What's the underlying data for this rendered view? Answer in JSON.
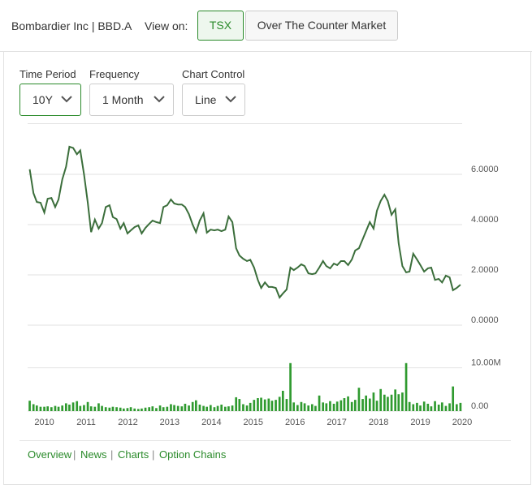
{
  "header": {
    "title": "Bombardier Inc | BBD.A",
    "view_on": "View on:",
    "buttons": [
      "TSX",
      "Over The Counter Market"
    ]
  },
  "controls": [
    {
      "label": "Time Period",
      "value": "10Y"
    },
    {
      "label": "Frequency",
      "value": "1 Month"
    },
    {
      "label": "Chart Control",
      "value": "Line"
    }
  ],
  "links": [
    "Overview",
    "News",
    "Charts",
    "Option Chains"
  ],
  "chart_data": {
    "type": "line",
    "x": [
      2009.65,
      2009.74,
      2009.82,
      2009.91,
      2010.0,
      2010.08,
      2010.17,
      2010.26,
      2010.34,
      2010.43,
      2010.52,
      2010.6,
      2010.69,
      2010.78,
      2010.86,
      2010.95,
      2011.04,
      2011.12,
      2011.21,
      2011.3,
      2011.38,
      2011.47,
      2011.56,
      2011.64,
      2011.73,
      2011.82,
      2011.9,
      2011.99,
      2012.07,
      2012.16,
      2012.25,
      2012.33,
      2012.42,
      2012.51,
      2012.59,
      2012.68,
      2012.77,
      2012.85,
      2012.94,
      2013.03,
      2013.11,
      2013.2,
      2013.29,
      2013.37,
      2013.46,
      2013.55,
      2013.63,
      2013.72,
      2013.81,
      2013.89,
      2013.98,
      2014.07,
      2014.15,
      2014.24,
      2014.33,
      2014.41,
      2014.5,
      2014.59,
      2014.67,
      2014.76,
      2014.85,
      2014.93,
      2015.02,
      2015.11,
      2015.19,
      2015.28,
      2015.37,
      2015.45,
      2015.54,
      2015.63,
      2015.71,
      2015.8,
      2015.89,
      2015.97,
      2016.06,
      2016.15,
      2016.23,
      2016.32,
      2016.41,
      2016.49,
      2016.58,
      2016.67,
      2016.75,
      2016.84,
      2016.93,
      2017.01,
      2017.1,
      2017.18,
      2017.27,
      2017.36,
      2017.44,
      2017.53,
      2017.62,
      2017.7,
      2017.79,
      2017.88,
      2017.96,
      2018.05,
      2018.14,
      2018.22,
      2018.31,
      2018.4,
      2018.48,
      2018.57,
      2018.66,
      2018.74,
      2018.83,
      2018.92,
      2019.0,
      2019.09,
      2019.18,
      2019.26,
      2019.35,
      2019.44,
      2019.52,
      2019.61,
      2019.7,
      2019.78,
      2019.87,
      2019.96
    ],
    "series": [
      {
        "name": "Price",
        "color": "#3b6e3b",
        "values": [
          6.2,
          5.25,
          4.9,
          4.87,
          4.48,
          5.03,
          5.06,
          4.7,
          5.0,
          5.8,
          6.3,
          7.1,
          7.05,
          6.8,
          6.95,
          6.0,
          4.87,
          3.7,
          4.2,
          3.84,
          4.06,
          4.7,
          4.77,
          4.3,
          4.22,
          3.84,
          4.06,
          3.65,
          3.77,
          3.9,
          3.97,
          3.65,
          3.87,
          4.03,
          4.16,
          4.1,
          4.06,
          4.7,
          4.77,
          5.0,
          4.84,
          4.8,
          4.8,
          4.7,
          4.42,
          4.0,
          3.7,
          4.16,
          4.45,
          3.68,
          3.8,
          3.77,
          3.8,
          3.74,
          3.8,
          4.32,
          4.1,
          3.06,
          2.77,
          2.64,
          2.55,
          2.6,
          2.29,
          1.8,
          1.48,
          1.7,
          1.52,
          1.52,
          1.48,
          1.1,
          1.26,
          1.42,
          2.29,
          2.19,
          2.29,
          2.42,
          2.35,
          2.06,
          2.03,
          2.06,
          2.29,
          2.55,
          2.35,
          2.26,
          2.45,
          2.39,
          2.55,
          2.55,
          2.39,
          2.61,
          2.97,
          3.06,
          3.42,
          3.74,
          4.1,
          3.84,
          4.55,
          4.94,
          5.19,
          4.94,
          4.39,
          4.61,
          3.26,
          2.35,
          2.1,
          2.13,
          2.84,
          2.61,
          2.39,
          2.13,
          2.26,
          2.29,
          1.8,
          1.84,
          1.7,
          1.97,
          1.9,
          1.39,
          1.48,
          1.61
        ]
      },
      {
        "name": "Volume",
        "type": "bar",
        "axis": "y2",
        "color": "#2f9a2f",
        "values": [
          2.4,
          1.6,
          1.3,
          1.0,
          1.0,
          1.1,
          0.9,
          1.2,
          1.0,
          1.3,
          1.8,
          1.5,
          2.0,
          2.3,
          1.2,
          1.4,
          2.1,
          1.1,
          1.0,
          1.8,
          1.2,
          0.9,
          0.8,
          1.0,
          0.9,
          0.8,
          0.6,
          0.7,
          0.9,
          0.6,
          0.5,
          0.6,
          0.8,
          0.9,
          1.1,
          0.7,
          1.3,
          0.9,
          1.0,
          1.6,
          1.4,
          1.2,
          1.1,
          1.7,
          1.3,
          2.1,
          2.5,
          1.5,
          1.2,
          1.0,
          1.4,
          0.9,
          1.2,
          1.5,
          1.0,
          1.1,
          1.3,
          3.2,
          2.8,
          1.6,
          1.3,
          1.9,
          2.6,
          3.0,
          3.1,
          2.7,
          2.9,
          2.4,
          2.6,
          3.3,
          4.7,
          2.8,
          11.1,
          2.0,
          1.4,
          2.1,
          1.8,
          1.3,
          1.6,
          1.2,
          3.6,
          2.0,
          1.8,
          2.3,
          1.7,
          2.2,
          2.5,
          3.0,
          3.4,
          2.1,
          2.6,
          5.4,
          2.8,
          3.6,
          2.9,
          4.3,
          2.4,
          5.1,
          3.8,
          3.3,
          3.8,
          5.0,
          3.9,
          4.3,
          11.1,
          2.1,
          1.6,
          1.9,
          1.3,
          2.2,
          1.7,
          1.1,
          2.3,
          1.5,
          2.0,
          1.2,
          1.8,
          5.7,
          1.6,
          1.9
        ]
      }
    ],
    "xlim": [
      2009.6,
      2020.0
    ],
    "xticks": [
      2010,
      2011,
      2012,
      2013,
      2014,
      2015,
      2016,
      2017,
      2018,
      2019,
      2020
    ],
    "ylim": [
      0,
      8
    ],
    "yticks": [
      {
        "value": 0,
        "label": "0.0000"
      },
      {
        "value": 2,
        "label": "2.0000"
      },
      {
        "value": 4,
        "label": "4.0000"
      },
      {
        "value": 6,
        "label": "6.0000"
      }
    ],
    "y2lim": [
      0,
      12
    ],
    "y2ticks": [
      {
        "value": 0,
        "label": "0.00"
      },
      {
        "value": 10,
        "label": "10.00M"
      }
    ],
    "grid": true
  }
}
